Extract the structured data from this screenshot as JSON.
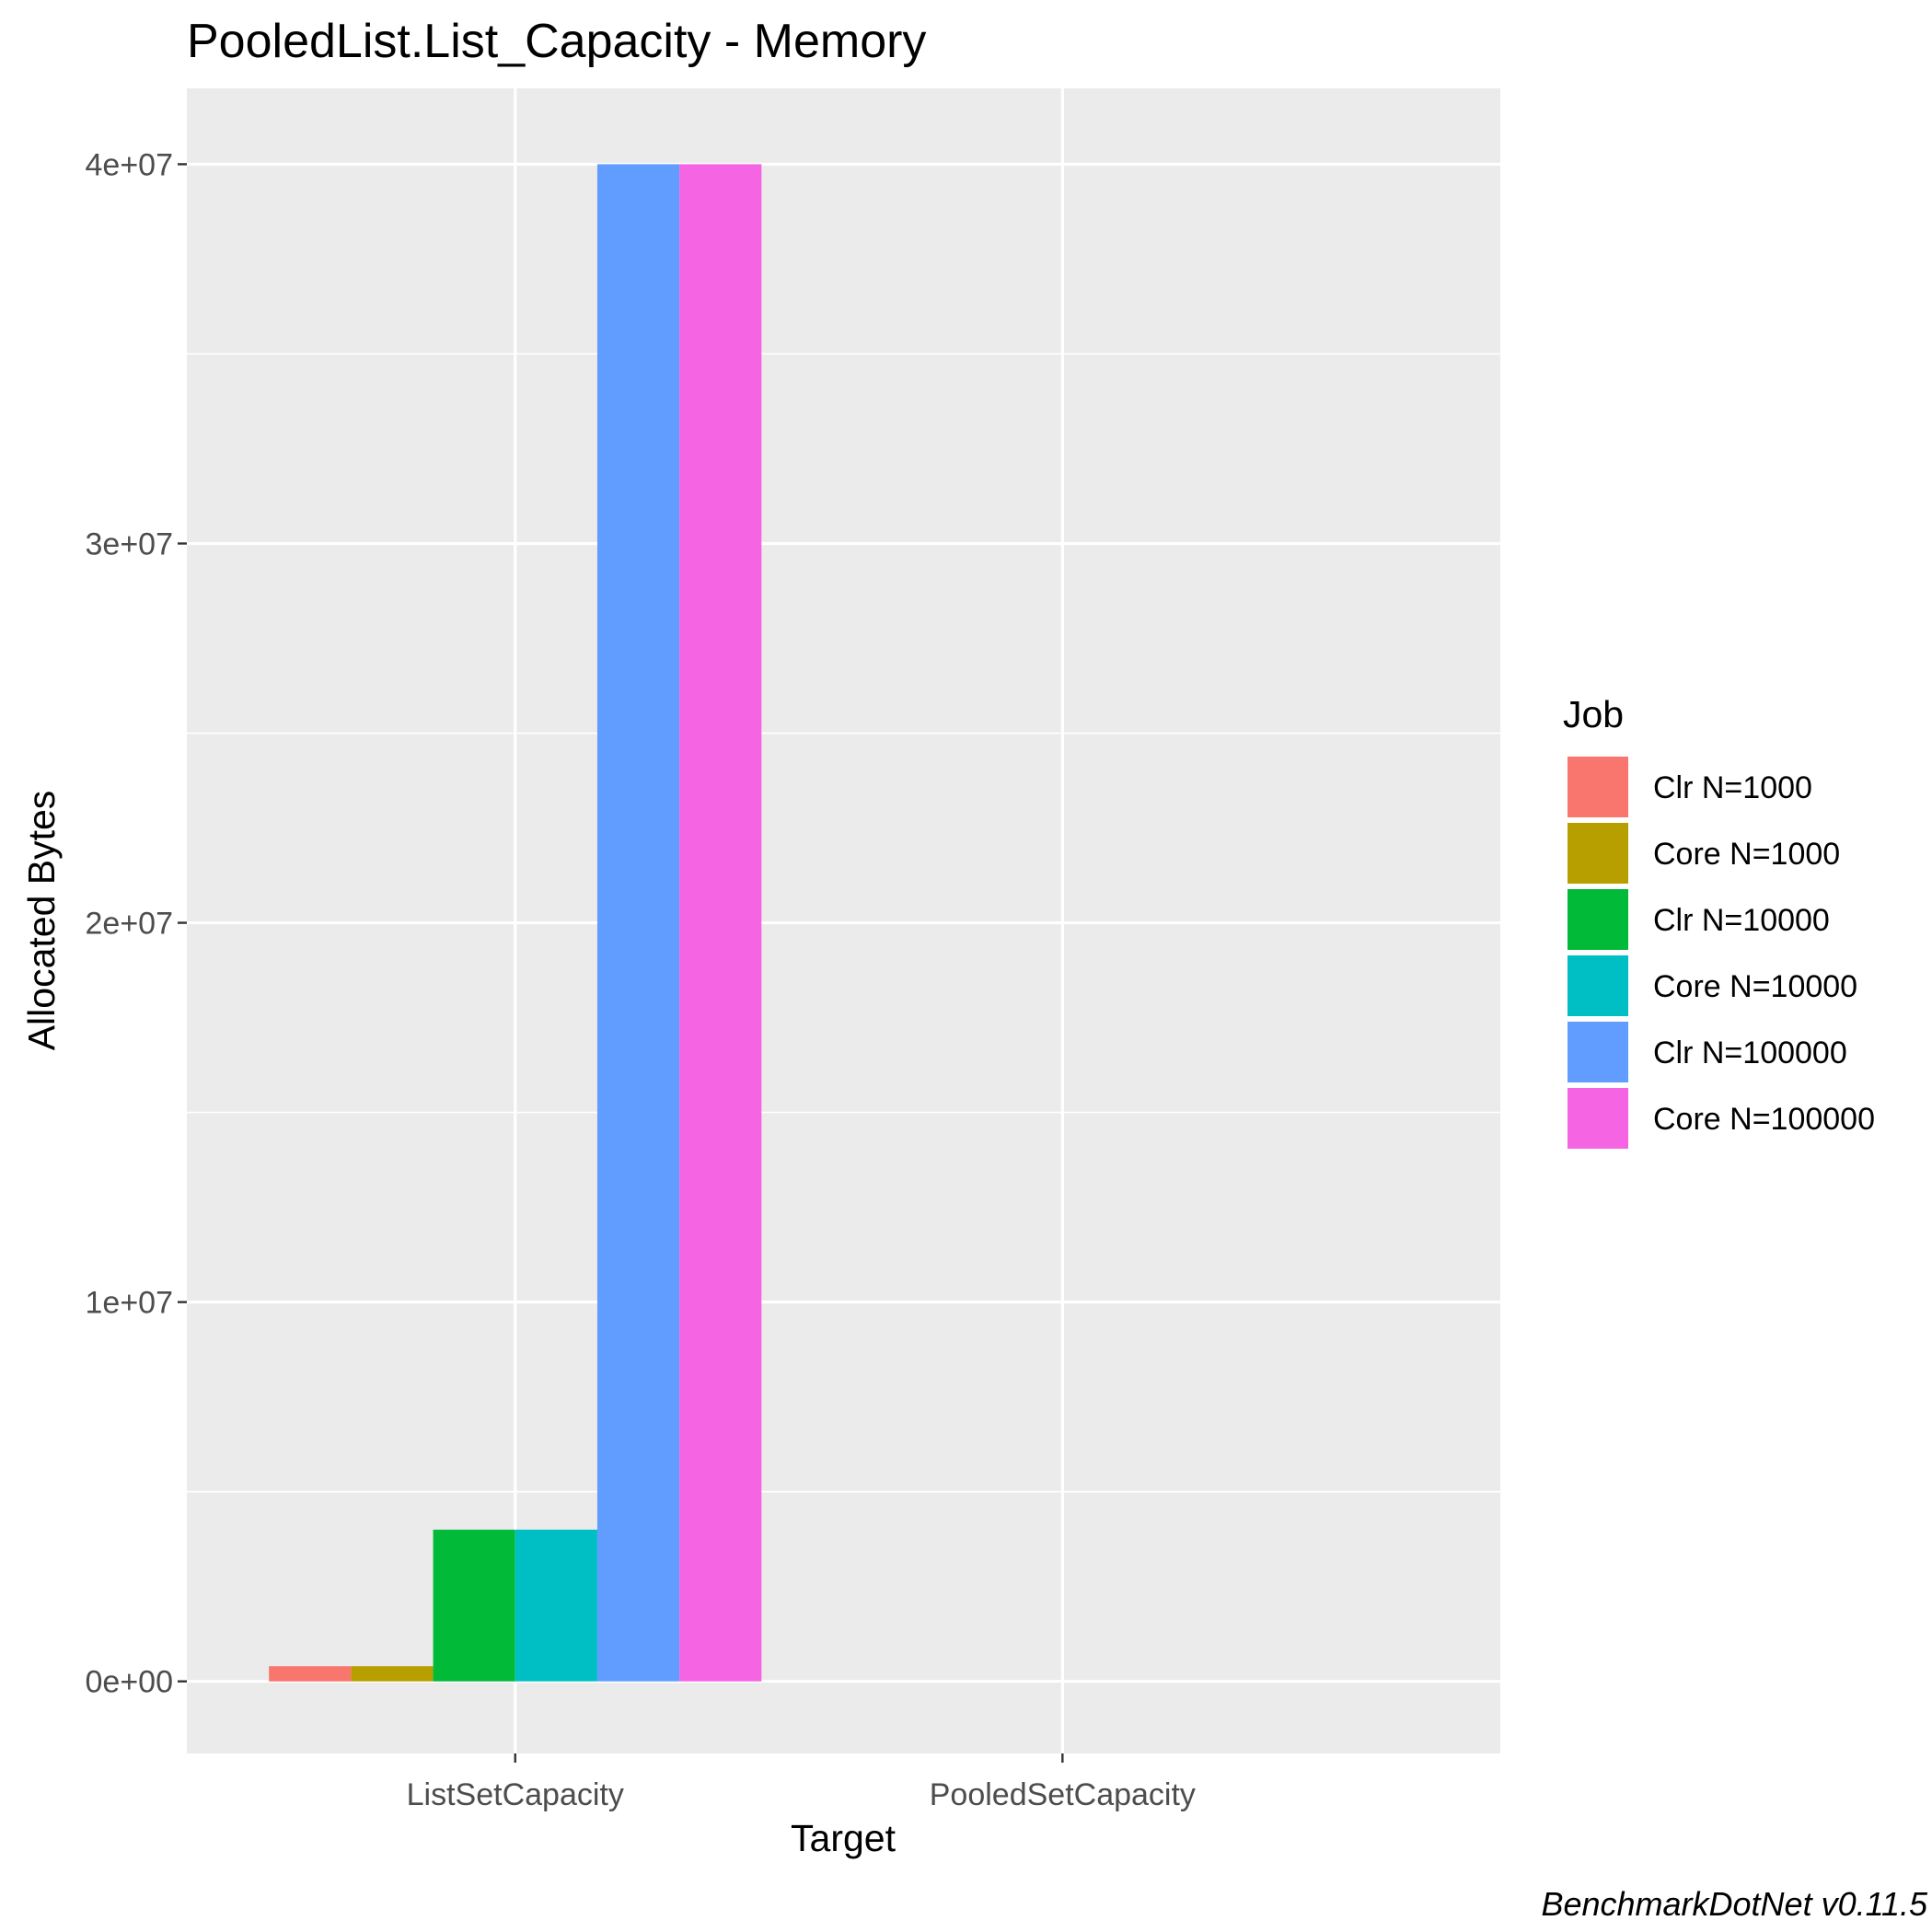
{
  "chart_data": {
    "type": "bar",
    "title": "PooledList.List_Capacity - Memory",
    "xlabel": "Target",
    "ylabel": "Allocated  Bytes",
    "categories": [
      "ListSetCapacity",
      "PooledSetCapacity"
    ],
    "ylim": [
      -1900000,
      42000000
    ],
    "yticks": [
      0,
      10000000,
      20000000,
      30000000,
      40000000
    ],
    "ytick_labels": [
      "0e+00",
      "1e+07",
      "2e+07",
      "3e+07",
      "4e+07"
    ],
    "grid": true,
    "legend_title": "Job",
    "legend_position": "right",
    "series": [
      {
        "name": "Clr N=1000",
        "color": "#F8766D",
        "values": [
          400000,
          0
        ]
      },
      {
        "name": "Core N=1000",
        "color": "#B79F00",
        "values": [
          400000,
          0
        ]
      },
      {
        "name": "Clr N=10000",
        "color": "#00BA38",
        "values": [
          4000000,
          0
        ]
      },
      {
        "name": "Core N=10000",
        "color": "#00BFC4",
        "values": [
          4000000,
          0
        ]
      },
      {
        "name": "Clr N=100000",
        "color": "#619CFF",
        "values": [
          40000000,
          0
        ]
      },
      {
        "name": "Core N=100000",
        "color": "#F564E3",
        "values": [
          40000000,
          0
        ]
      }
    ],
    "caption": "BenchmarkDotNet v0.11.5"
  },
  "colors": {
    "panel_background": "#EBEBEB",
    "grid_line": "#FFFFFF",
    "tick_text": "#4D4D4D"
  }
}
